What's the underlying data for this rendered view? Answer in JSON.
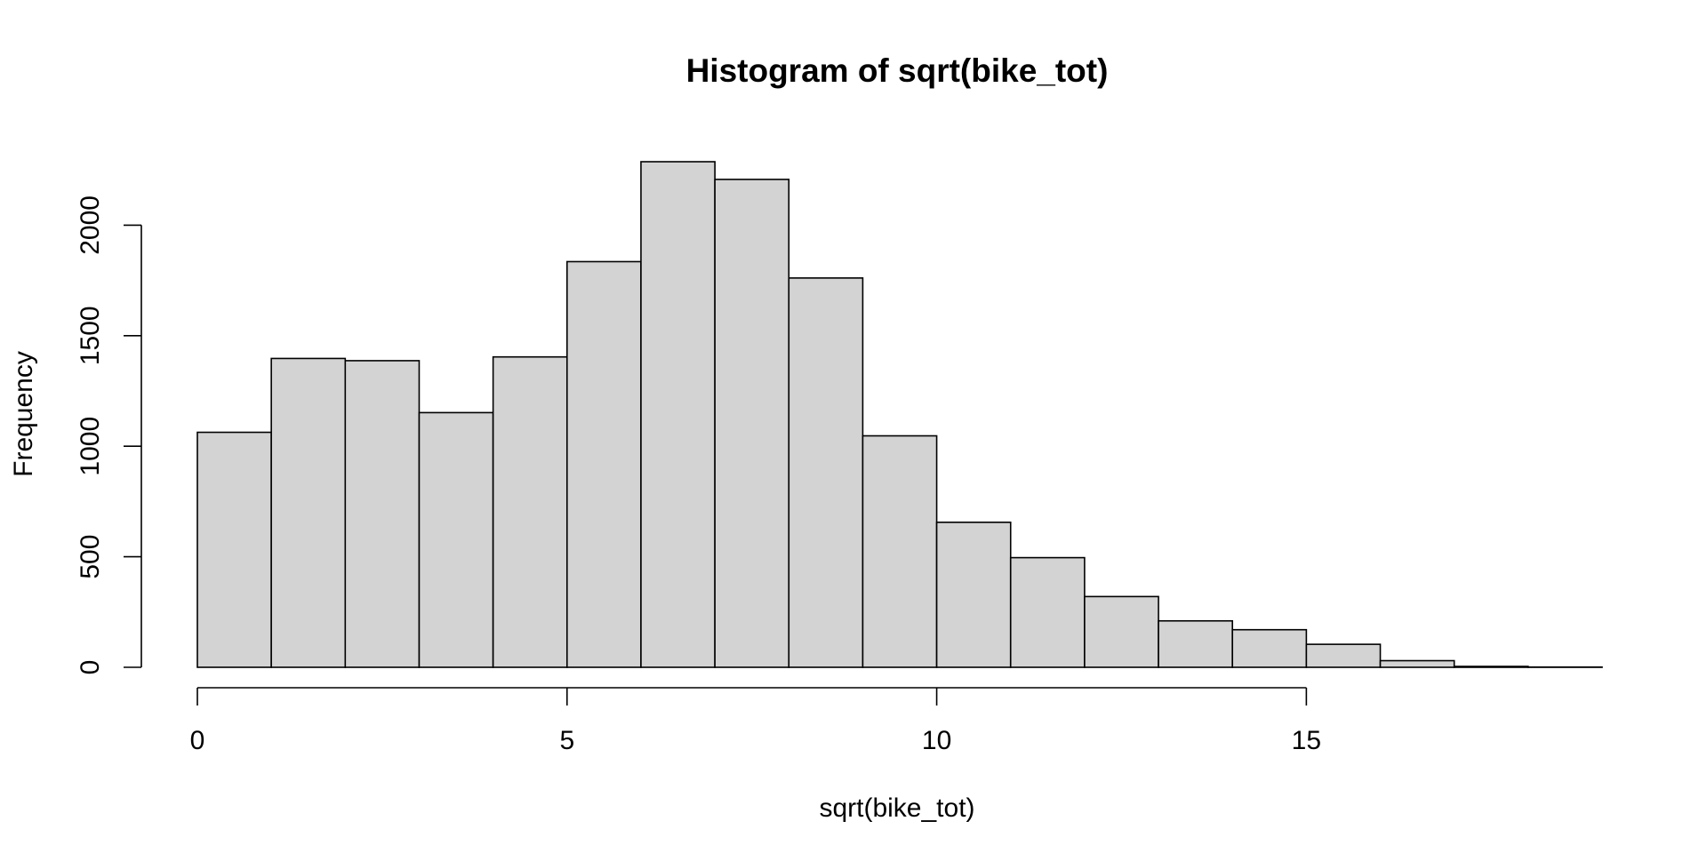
{
  "chart_data": {
    "type": "bar",
    "title": "Histogram of sqrt(bike_tot)",
    "xlabel": "sqrt(bike_tot)",
    "ylabel": "Frequency",
    "bar_color": "#d3d3d3",
    "bins": [
      {
        "x0": 0,
        "x1": 1,
        "value": 1063
      },
      {
        "x0": 1,
        "x1": 2,
        "value": 1397
      },
      {
        "x0": 2,
        "x1": 3,
        "value": 1387
      },
      {
        "x0": 3,
        "x1": 4,
        "value": 1152
      },
      {
        "x0": 4,
        "x1": 5,
        "value": 1404
      },
      {
        "x0": 5,
        "x1": 6,
        "value": 1835
      },
      {
        "x0": 6,
        "x1": 7,
        "value": 2287
      },
      {
        "x0": 7,
        "x1": 8,
        "value": 2207
      },
      {
        "x0": 8,
        "x1": 9,
        "value": 1761
      },
      {
        "x0": 9,
        "x1": 10,
        "value": 1047
      },
      {
        "x0": 10,
        "x1": 11,
        "value": 656
      },
      {
        "x0": 11,
        "x1": 12,
        "value": 496
      },
      {
        "x0": 12,
        "x1": 13,
        "value": 320
      },
      {
        "x0": 13,
        "x1": 14,
        "value": 210
      },
      {
        "x0": 14,
        "x1": 15,
        "value": 170
      },
      {
        "x0": 15,
        "x1": 16,
        "value": 104
      },
      {
        "x0": 16,
        "x1": 17,
        "value": 30
      },
      {
        "x0": 17,
        "x1": 18,
        "value": 4
      },
      {
        "x0": 18,
        "x1": 19,
        "value": 1
      }
    ],
    "xticks": [
      0,
      5,
      10,
      15
    ],
    "xtick_labels": [
      "0",
      "5",
      "10",
      "15"
    ],
    "yticks": [
      0,
      500,
      1000,
      1500,
      2000
    ],
    "ytick_labels": [
      "0",
      "500",
      "1000",
      "1500",
      "2000"
    ],
    "xlim": [
      0,
      19
    ],
    "ylim": [
      0,
      2287
    ],
    "grid": false,
    "legend": false
  }
}
